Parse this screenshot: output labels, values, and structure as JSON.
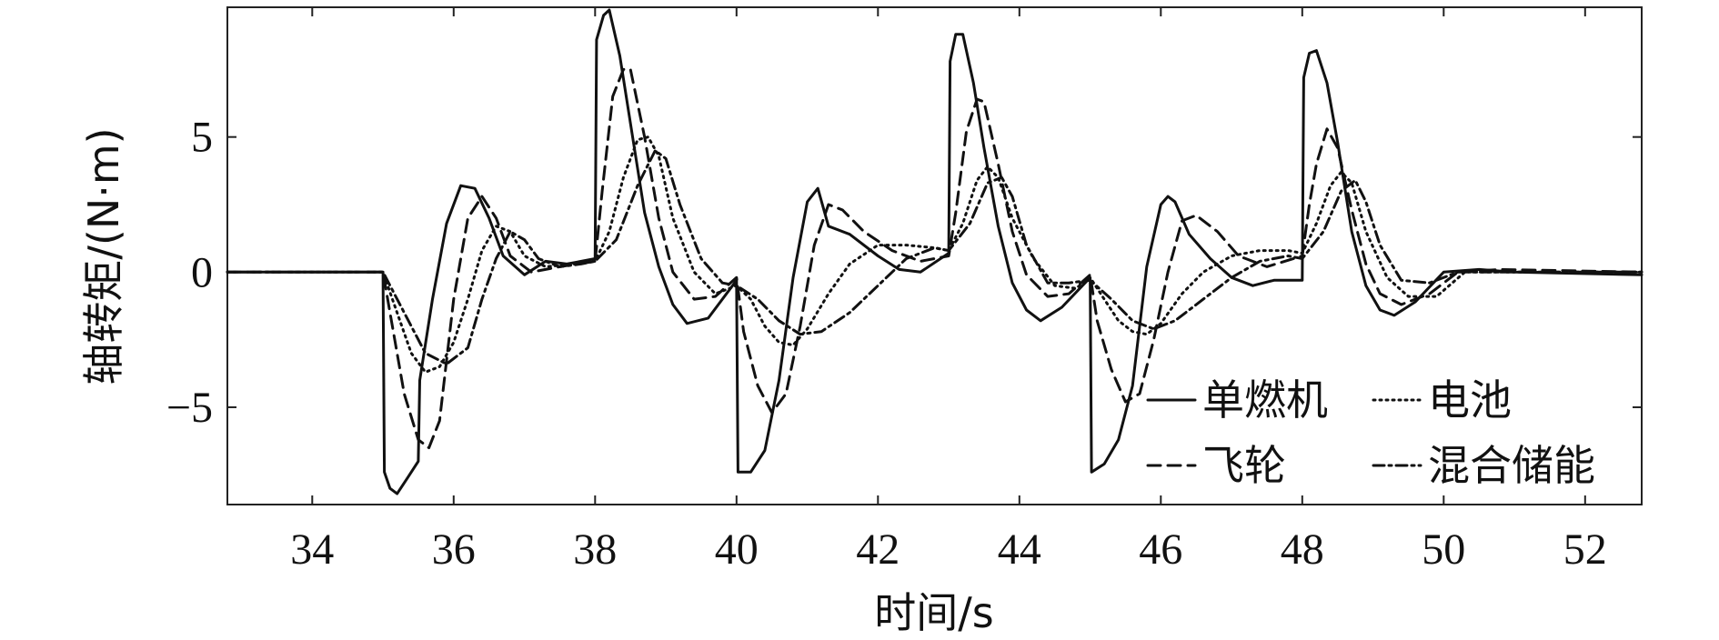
{
  "chart_data": {
    "type": "line",
    "title": "",
    "xlabel": "时间/s",
    "ylabel": "轴转矩/(N·m)",
    "xlim": [
      32.8,
      52.8
    ],
    "ylim": [
      -8.6,
      9.8
    ],
    "xticks": [
      34,
      36,
      38,
      40,
      42,
      44,
      46,
      48,
      50,
      52
    ],
    "xtick_labels": [
      "34",
      "36",
      "38",
      "40",
      "42",
      "44",
      "46",
      "48",
      "50",
      "52"
    ],
    "yticks": [
      -5,
      0,
      5
    ],
    "ytick_labels": [
      "−5",
      "0",
      "5"
    ],
    "grid": false,
    "legend_position": "bottom-right",
    "series": [
      {
        "name": "单燃机",
        "style": "solid",
        "x": [
          32.8,
          35.0,
          35.02,
          35.1,
          35.2,
          35.35,
          35.5,
          35.52,
          35.7,
          35.9,
          36.1,
          36.3,
          36.5,
          36.7,
          37.0,
          37.3,
          37.6,
          38.0,
          38.02,
          38.12,
          38.2,
          38.35,
          38.5,
          38.7,
          38.9,
          39.1,
          39.3,
          39.6,
          40.0,
          40.02,
          40.2,
          40.4,
          40.6,
          40.8,
          41.0,
          41.15,
          41.3,
          41.6,
          42.0,
          42.3,
          42.6,
          43.0,
          43.02,
          43.1,
          43.2,
          43.35,
          43.5,
          43.7,
          43.9,
          44.1,
          44.3,
          44.6,
          45.0,
          45.02,
          45.2,
          45.4,
          45.6,
          45.8,
          46.0,
          46.1,
          46.2,
          46.4,
          46.7,
          47.0,
          47.3,
          47.6,
          48.0,
          48.02,
          48.1,
          48.2,
          48.35,
          48.5,
          48.7,
          48.9,
          49.1,
          49.3,
          49.6,
          50.0,
          50.5,
          51.0,
          52.8
        ],
        "y": [
          0,
          0,
          -7.4,
          -8.0,
          -8.2,
          -7.6,
          -7.0,
          -4.0,
          -1.0,
          1.8,
          3.2,
          3.1,
          2.0,
          0.6,
          -0.1,
          0.4,
          0.3,
          0.5,
          8.6,
          9.5,
          9.7,
          8.0,
          5.5,
          2.2,
          0.2,
          -1.2,
          -1.9,
          -1.7,
          -0.3,
          -7.4,
          -7.4,
          -6.6,
          -4.0,
          -0.2,
          2.6,
          3.1,
          1.7,
          1.4,
          0.6,
          0.1,
          0.0,
          0.7,
          7.8,
          8.8,
          8.8,
          7.0,
          4.6,
          1.7,
          -0.4,
          -1.4,
          -1.8,
          -1.3,
          -0.2,
          -7.4,
          -7.1,
          -6.2,
          -4.2,
          0.2,
          2.5,
          2.8,
          2.6,
          1.4,
          0.5,
          -0.2,
          -0.5,
          -0.3,
          -0.3,
          7.2,
          8.1,
          8.2,
          7.0,
          4.8,
          1.5,
          -0.5,
          -1.4,
          -1.6,
          -1.1,
          0.0,
          0.1,
          0.0,
          -0.1
        ]
      },
      {
        "name": "飞轮",
        "style": "dashed",
        "x": [
          32.8,
          35.0,
          35.1,
          35.3,
          35.5,
          35.65,
          35.8,
          36.0,
          36.2,
          36.4,
          36.6,
          36.8,
          37.1,
          37.5,
          38.0,
          38.1,
          38.25,
          38.4,
          38.5,
          38.7,
          38.9,
          39.1,
          39.4,
          39.7,
          40.0,
          40.1,
          40.3,
          40.5,
          40.7,
          40.9,
          41.1,
          41.3,
          41.5,
          41.8,
          42.2,
          42.6,
          43.0,
          43.1,
          43.25,
          43.4,
          43.5,
          43.7,
          43.9,
          44.1,
          44.4,
          44.7,
          45.0,
          45.1,
          45.3,
          45.5,
          45.7,
          45.9,
          46.1,
          46.3,
          46.5,
          46.8,
          47.1,
          47.5,
          48.0,
          48.1,
          48.2,
          48.35,
          48.5,
          48.7,
          48.9,
          49.1,
          49.4,
          49.8,
          50.2,
          50.8,
          52.8
        ],
        "y": [
          0,
          0,
          -1.5,
          -4.5,
          -6.2,
          -6.5,
          -5.5,
          -1.0,
          2.0,
          2.8,
          2.0,
          0.6,
          0.0,
          0.2,
          0.4,
          3.0,
          6.5,
          7.5,
          7.5,
          5.0,
          2.0,
          0.0,
          -1.0,
          -0.9,
          -0.2,
          -2.2,
          -4.2,
          -5.2,
          -4.5,
          -2.0,
          1.0,
          2.5,
          2.3,
          1.5,
          0.8,
          0.4,
          0.6,
          2.2,
          5.2,
          6.4,
          6.3,
          4.0,
          1.5,
          -0.1,
          -0.9,
          -0.8,
          -0.1,
          -1.8,
          -3.6,
          -4.8,
          -4.5,
          -2.5,
          0.0,
          1.9,
          2.1,
          1.5,
          0.6,
          0.2,
          0.6,
          2.5,
          4.0,
          5.3,
          4.6,
          2.3,
          0.3,
          -0.8,
          -1.2,
          -0.8,
          0.0,
          0.1,
          0.0
        ]
      },
      {
        "name": "电池",
        "style": "dotted",
        "x": [
          32.8,
          35.0,
          35.2,
          35.4,
          35.6,
          35.8,
          36.0,
          36.2,
          36.4,
          36.6,
          36.8,
          37.0,
          37.3,
          37.7,
          38.0,
          38.2,
          38.4,
          38.6,
          38.75,
          38.9,
          39.1,
          39.4,
          39.7,
          40.0,
          40.2,
          40.4,
          40.6,
          40.8,
          41.0,
          41.3,
          41.6,
          42.0,
          42.4,
          42.8,
          43.0,
          43.2,
          43.4,
          43.55,
          43.7,
          43.9,
          44.2,
          44.5,
          44.8,
          45.0,
          45.2,
          45.4,
          45.6,
          45.8,
          46.0,
          46.3,
          46.6,
          47.0,
          47.4,
          47.8,
          48.0,
          48.2,
          48.4,
          48.55,
          48.7,
          48.9,
          49.2,
          49.5,
          49.9,
          50.3,
          50.8,
          52.8
        ],
        "y": [
          0,
          0,
          -1.5,
          -3.0,
          -3.7,
          -3.5,
          -2.6,
          -1.0,
          0.8,
          1.7,
          1.5,
          0.6,
          0.2,
          0.3,
          0.4,
          1.5,
          3.5,
          4.9,
          5.0,
          4.3,
          2.0,
          0.0,
          -0.8,
          -0.5,
          -1.0,
          -2.0,
          -2.6,
          -2.7,
          -2.1,
          -0.8,
          0.3,
          1.0,
          1.0,
          0.9,
          0.8,
          1.8,
          3.4,
          3.9,
          3.5,
          2.0,
          0.5,
          -0.5,
          -0.6,
          -0.2,
          -1.0,
          -1.8,
          -2.2,
          -2.3,
          -1.9,
          -0.8,
          0.0,
          0.6,
          0.8,
          0.8,
          0.7,
          1.8,
          3.2,
          3.7,
          3.3,
          1.5,
          -0.2,
          -0.9,
          -0.9,
          0.0,
          0.0,
          0.0
        ]
      },
      {
        "name": "混合储能",
        "style": "dashdot",
        "x": [
          32.8,
          35.0,
          35.3,
          35.6,
          35.9,
          36.2,
          36.4,
          36.6,
          36.8,
          37.0,
          37.2,
          37.5,
          37.8,
          38.0,
          38.3,
          38.6,
          38.85,
          39.0,
          39.2,
          39.5,
          39.8,
          40.0,
          40.3,
          40.6,
          40.9,
          41.2,
          41.6,
          42.0,
          42.4,
          42.8,
          43.0,
          43.3,
          43.55,
          43.75,
          43.9,
          44.1,
          44.4,
          44.7,
          45.0,
          45.3,
          45.6,
          45.9,
          46.2,
          46.6,
          47.0,
          47.4,
          47.8,
          48.0,
          48.3,
          48.55,
          48.75,
          48.9,
          49.1,
          49.4,
          49.8,
          50.2,
          50.8,
          52.8
        ],
        "y": [
          0,
          0,
          -1.5,
          -3.0,
          -3.4,
          -2.8,
          -1.0,
          0.5,
          1.5,
          1.2,
          0.5,
          0.2,
          0.3,
          0.4,
          1.2,
          3.2,
          4.5,
          4.2,
          2.5,
          0.5,
          -0.4,
          -0.5,
          -1.0,
          -1.8,
          -2.3,
          -2.2,
          -1.5,
          -0.5,
          0.5,
          0.9,
          0.8,
          1.8,
          3.3,
          3.5,
          2.8,
          1.0,
          -0.4,
          -0.4,
          -0.3,
          -1.0,
          -1.8,
          -2.1,
          -1.8,
          -1.0,
          -0.2,
          0.4,
          0.6,
          0.5,
          1.5,
          3.0,
          3.4,
          2.6,
          1.0,
          -0.3,
          -0.4,
          0.0,
          0.0,
          0.0
        ]
      }
    ]
  }
}
